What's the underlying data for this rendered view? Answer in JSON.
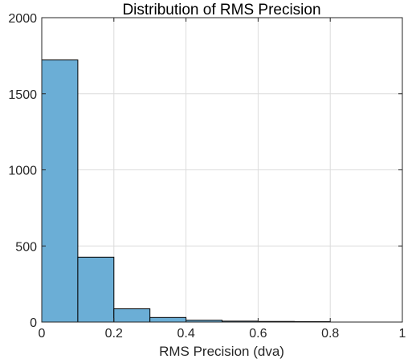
{
  "chart_data": {
    "type": "bar",
    "title": "Distribution of RMS Precision",
    "xlabel": "RMS Precision (dva)",
    "ylabel": "",
    "xlim": [
      0,
      1
    ],
    "ylim": [
      0,
      2000
    ],
    "xticks": [
      "0",
      "0.2",
      "0.4",
      "0.6",
      "0.8",
      "1"
    ],
    "yticks": [
      "0",
      "500",
      "1000",
      "1500",
      "2000"
    ],
    "grid": true,
    "bin_edges": [
      0,
      0.1,
      0.2,
      0.3,
      0.4,
      0.5,
      0.6,
      0.7,
      0.8
    ],
    "values": [
      1722,
      426,
      87,
      30,
      12,
      6,
      4,
      3
    ],
    "bar_color": "#6baed6",
    "bar_edge_color": "#000000"
  }
}
